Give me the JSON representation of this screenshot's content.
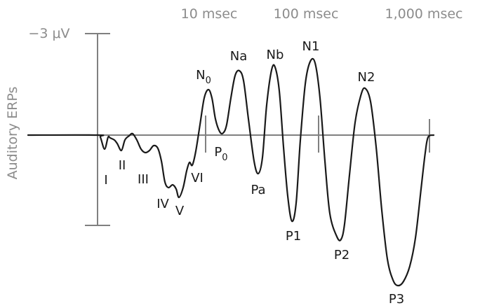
{
  "time_labels": [
    "10 msec",
    "100 msec",
    "1,000 msec"
  ],
  "scale_label": "−3 μV",
  "y_axis_label": "Auditory ERPs",
  "peaks": {
    "I": "I",
    "II": "II",
    "III": "III",
    "IV": "IV",
    "V": "V",
    "VI": "VI",
    "N0_base": "N",
    "N0_sub": "0",
    "P0_base": "P",
    "P0_sub": "0",
    "Na": "Na",
    "Pa": "Pa",
    "Nb": "Nb",
    "N1": "N1",
    "P1": "P1",
    "N2": "N2",
    "P2": "P2",
    "P3": "P3"
  }
}
